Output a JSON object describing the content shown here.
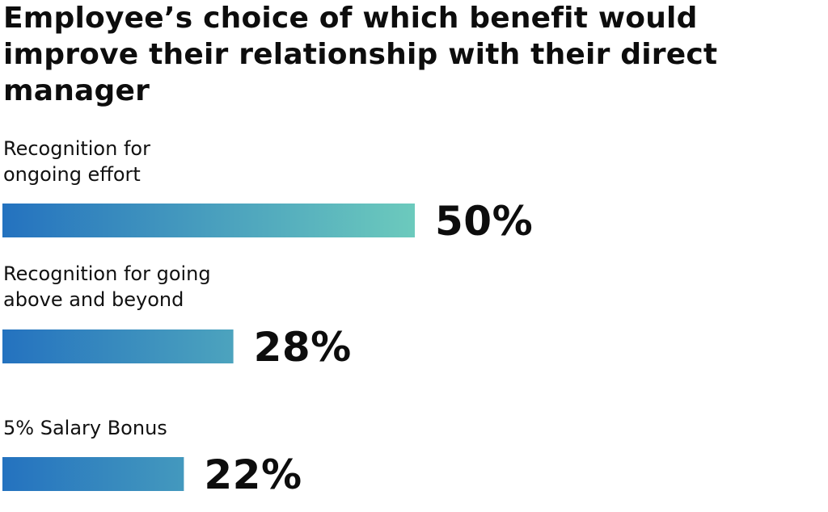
{
  "chart_data": {
    "type": "bar",
    "orientation": "horizontal",
    "title": "Employee’s choice of which benefit would improve their relationship with their direct manager",
    "categories": [
      "Recognition for\nongoing effort",
      "Recognition for going\nabove and beyond",
      "5% Salary Bonus"
    ],
    "values": [
      50,
      28,
      22
    ],
    "value_labels": [
      "50%",
      "28%",
      "22%"
    ],
    "unit": "%",
    "xlim": [
      0,
      50
    ],
    "grid": false,
    "legend": "none",
    "colors": {
      "gradient_start": "#2472bf",
      "gradient_end": "#6ccabd"
    }
  }
}
